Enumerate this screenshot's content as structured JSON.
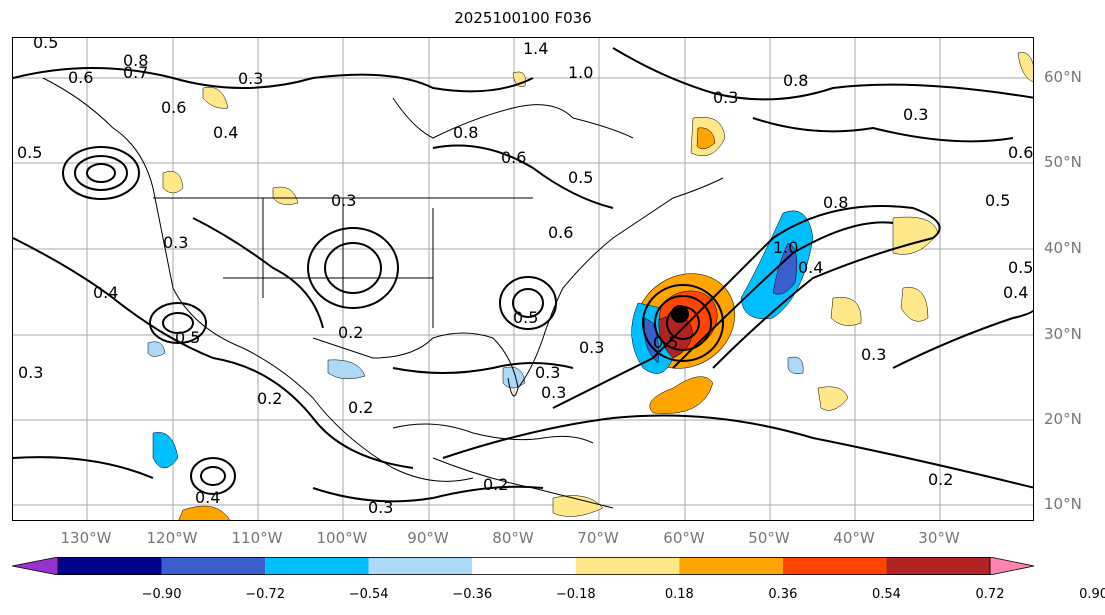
{
  "title": "2025100100 F036",
  "lat_labels": [
    "60°N",
    "50°N",
    "40°N",
    "30°N",
    "20°N",
    "10°N"
  ],
  "lon_labels": [
    "130°W",
    "120°W",
    "110°W",
    "100°W",
    "90°W",
    "80°W",
    "70°W",
    "60°W",
    "50°W",
    "40°W",
    "30°W"
  ],
  "colorbar": {
    "ticks": [
      "−0.90",
      "−0.72",
      "−0.54",
      "−0.36",
      "−0.18",
      "0.18",
      "0.36",
      "0.54",
      "0.72",
      "0.90"
    ],
    "colors": [
      "#9932cc",
      "#00008b",
      "#3a5fcd",
      "#00bfff",
      "#add8f6",
      "#ffffff",
      "#ffe88a",
      "#ffa500",
      "#ff4500",
      "#b22222",
      "#ff83b0"
    ]
  },
  "contour_labels": [
    "0.5",
    "0.8",
    "0.7",
    "0.3",
    "0.6",
    "0.4",
    "0.5",
    "0.6",
    "1.4",
    "1.0",
    "0.8",
    "0.3",
    "0.6",
    "0.5",
    "0.3",
    "0.8",
    "0.3",
    "0.6",
    "0.5",
    "0.3",
    "0.4",
    "0.2",
    "0.5",
    "0.3",
    "0.2",
    "0.2",
    "0.3",
    "0.2",
    "0.4",
    "0.3",
    "0.3",
    "0.8",
    "1.0",
    "0.4",
    "0.3",
    "0.3",
    "0.2",
    "0.5",
    "0.4",
    "0.5",
    "0.5",
    "0.6"
  ],
  "colors": {
    "positive_anomaly": "#ffa500",
    "negative_anomaly": "#00bfff",
    "contour": "#000000",
    "grid": "#aaaaaa",
    "coastline": "#000000"
  }
}
